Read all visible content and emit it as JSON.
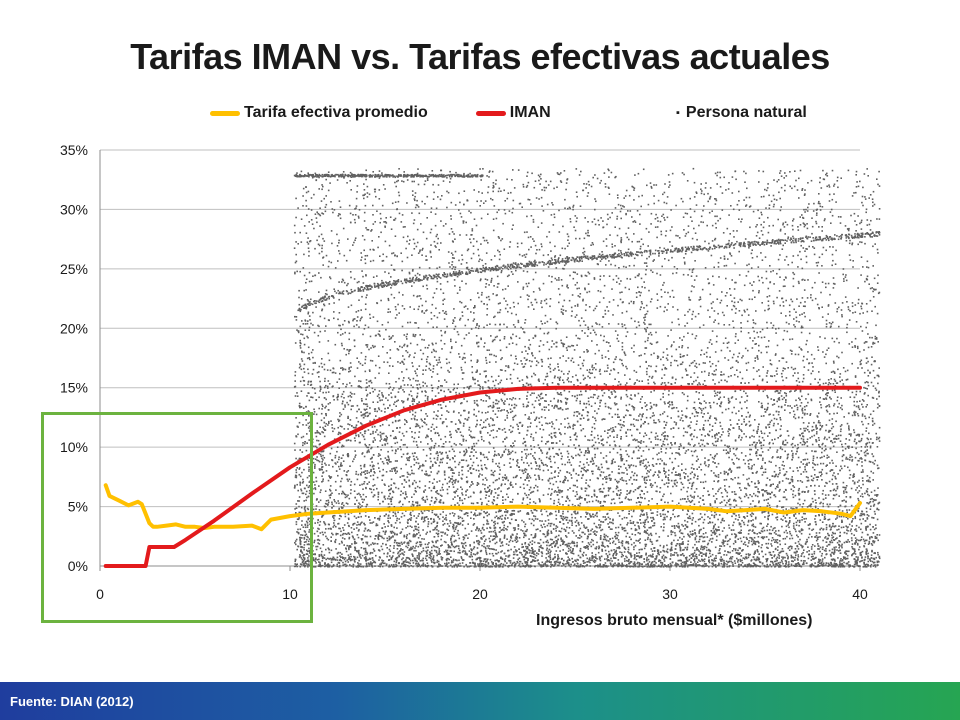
{
  "slide": {
    "title": "Tarifas IMAN vs. Tarifas efectivas actuales",
    "subtitle": "Persona natural",
    "source": "Fuente: DIAN (2012)"
  },
  "colors": {
    "avg_series": "#ffc000",
    "iman_series": "#e31a1c",
    "scatter": "#606060",
    "grid": "#bfbfbf",
    "highlight_box": "#6cb33f"
  },
  "chart_data": {
    "type": "line",
    "xlabel": "Ingresos bruto mensual* ($millones)",
    "ylabel": "",
    "xlim": [
      0,
      40
    ],
    "ylim": [
      0,
      0.35
    ],
    "x_ticks": [
      "0",
      "10",
      "20",
      "30",
      "40"
    ],
    "y_ticks": [
      "0%",
      "5%",
      "10%",
      "15%",
      "20%",
      "25%",
      "30%",
      "35%"
    ],
    "grid": "horizontal",
    "legend": "top",
    "series": [
      {
        "name": "Tarifa efectiva promedio",
        "color": "#ffc000",
        "x": [
          0.3,
          0.5,
          1.0,
          1.5,
          2.0,
          2.2,
          2.6,
          2.8,
          3.0,
          3.5,
          4.0,
          4.5,
          5.0,
          5.5,
          6.0,
          7.0,
          8.0,
          8.5,
          9.0,
          10.0,
          11.0,
          12.0,
          14.0,
          16.0,
          18.0,
          20.0,
          22.0,
          24.0,
          26.0,
          28.0,
          30.0,
          32.0,
          33.0,
          34.0,
          35.0,
          36.0,
          37.0,
          38.0,
          39.0,
          39.5,
          40.0
        ],
        "y": [
          0.068,
          0.059,
          0.055,
          0.051,
          0.054,
          0.052,
          0.036,
          0.033,
          0.033,
          0.034,
          0.035,
          0.033,
          0.033,
          0.032,
          0.033,
          0.033,
          0.034,
          0.031,
          0.039,
          0.042,
          0.044,
          0.045,
          0.047,
          0.048,
          0.049,
          0.049,
          0.05,
          0.049,
          0.048,
          0.049,
          0.05,
          0.048,
          0.046,
          0.047,
          0.048,
          0.045,
          0.047,
          0.046,
          0.044,
          0.042,
          0.053
        ]
      },
      {
        "name": "IMAN",
        "color": "#e31a1c",
        "x": [
          0.3,
          2.4,
          2.6,
          3.9,
          4.5,
          6.0,
          8.0,
          10.0,
          12.0,
          14.0,
          16.0,
          18.0,
          20.0,
          22.0,
          24.0,
          25.0,
          30.0,
          35.0,
          40.0
        ],
        "y": [
          0.0,
          0.0,
          0.016,
          0.016,
          0.022,
          0.038,
          0.061,
          0.083,
          0.102,
          0.118,
          0.131,
          0.14,
          0.146,
          0.149,
          0.15,
          0.15,
          0.15,
          0.15,
          0.15
        ]
      },
      {
        "type": "scatter",
        "color": "#606060",
        "x_range": [
          10.2,
          41
        ],
        "y_range": [
          0.0,
          0.335
        ],
        "dense_band_y": [
          0.0,
          0.15
        ]
      }
    ]
  }
}
